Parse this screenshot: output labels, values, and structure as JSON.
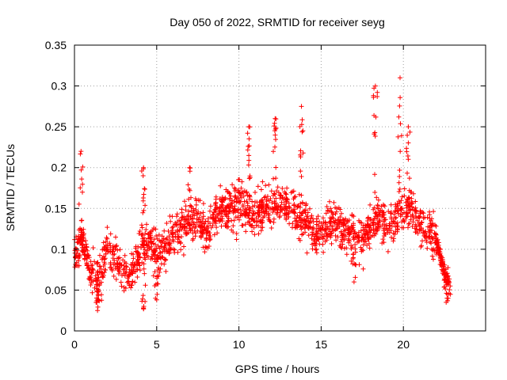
{
  "chart_data": {
    "type": "scatter",
    "title": "Day 050 of 2022, SRMTID for receiver seyg",
    "xlabel": "GPS time / hours",
    "ylabel": "SRMTID / TECUs",
    "xlim": [
      0,
      25
    ],
    "ylim": [
      0,
      0.35
    ],
    "xticks": [
      0,
      5,
      10,
      15,
      20
    ],
    "xtick_labels": [
      "0",
      "5",
      "10",
      "15",
      "20"
    ],
    "yticks": [
      0,
      0.05,
      0.1,
      0.15,
      0.2,
      0.25,
      0.3,
      0.35
    ],
    "ytick_labels": [
      "0",
      "0.05",
      "0.1",
      "0.15",
      "0.2",
      "0.25",
      "0.3",
      "0.35"
    ],
    "grid": true,
    "marker": "plus",
    "color": "#ff0000",
    "series": [
      {
        "name": "SRMTID",
        "trend_hours": [
          0,
          0.5,
          1,
          1.5,
          2,
          2.5,
          3,
          3.5,
          4,
          4.5,
          5,
          5.5,
          6,
          6.5,
          7,
          7.5,
          8,
          8.5,
          9,
          9.5,
          10,
          10.5,
          11,
          11.5,
          12,
          12.5,
          13,
          13.5,
          14,
          14.5,
          15,
          15.5,
          16,
          16.5,
          17,
          17.5,
          18,
          18.5,
          19,
          19.5,
          20,
          20.5,
          21,
          21.5,
          22,
          22.5,
          22.9
        ],
        "trend_values": [
          0.09,
          0.11,
          0.07,
          0.06,
          0.1,
          0.09,
          0.07,
          0.07,
          0.1,
          0.11,
          0.09,
          0.1,
          0.12,
          0.13,
          0.13,
          0.14,
          0.12,
          0.14,
          0.15,
          0.15,
          0.16,
          0.15,
          0.14,
          0.15,
          0.15,
          0.16,
          0.15,
          0.14,
          0.14,
          0.12,
          0.12,
          0.13,
          0.13,
          0.12,
          0.12,
          0.11,
          0.13,
          0.14,
          0.13,
          0.14,
          0.15,
          0.15,
          0.13,
          0.12,
          0.11,
          0.07,
          0.05
        ],
        "peaks": [
          {
            "x": 0.4,
            "y": 0.22
          },
          {
            "x": 4.2,
            "y": 0.2
          },
          {
            "x": 7.0,
            "y": 0.2
          },
          {
            "x": 10.6,
            "y": 0.25
          },
          {
            "x": 12.2,
            "y": 0.26
          },
          {
            "x": 13.8,
            "y": 0.275
          },
          {
            "x": 18.3,
            "y": 0.3
          },
          {
            "x": 19.8,
            "y": 0.31
          },
          {
            "x": 20.3,
            "y": 0.25
          },
          {
            "x": 1.4,
            "y": 0.025
          },
          {
            "x": 4.2,
            "y": 0.027
          },
          {
            "x": 5.0,
            "y": 0.038
          },
          {
            "x": 17.0,
            "y": 0.06
          },
          {
            "x": 22.6,
            "y": 0.035
          }
        ]
      }
    ]
  }
}
